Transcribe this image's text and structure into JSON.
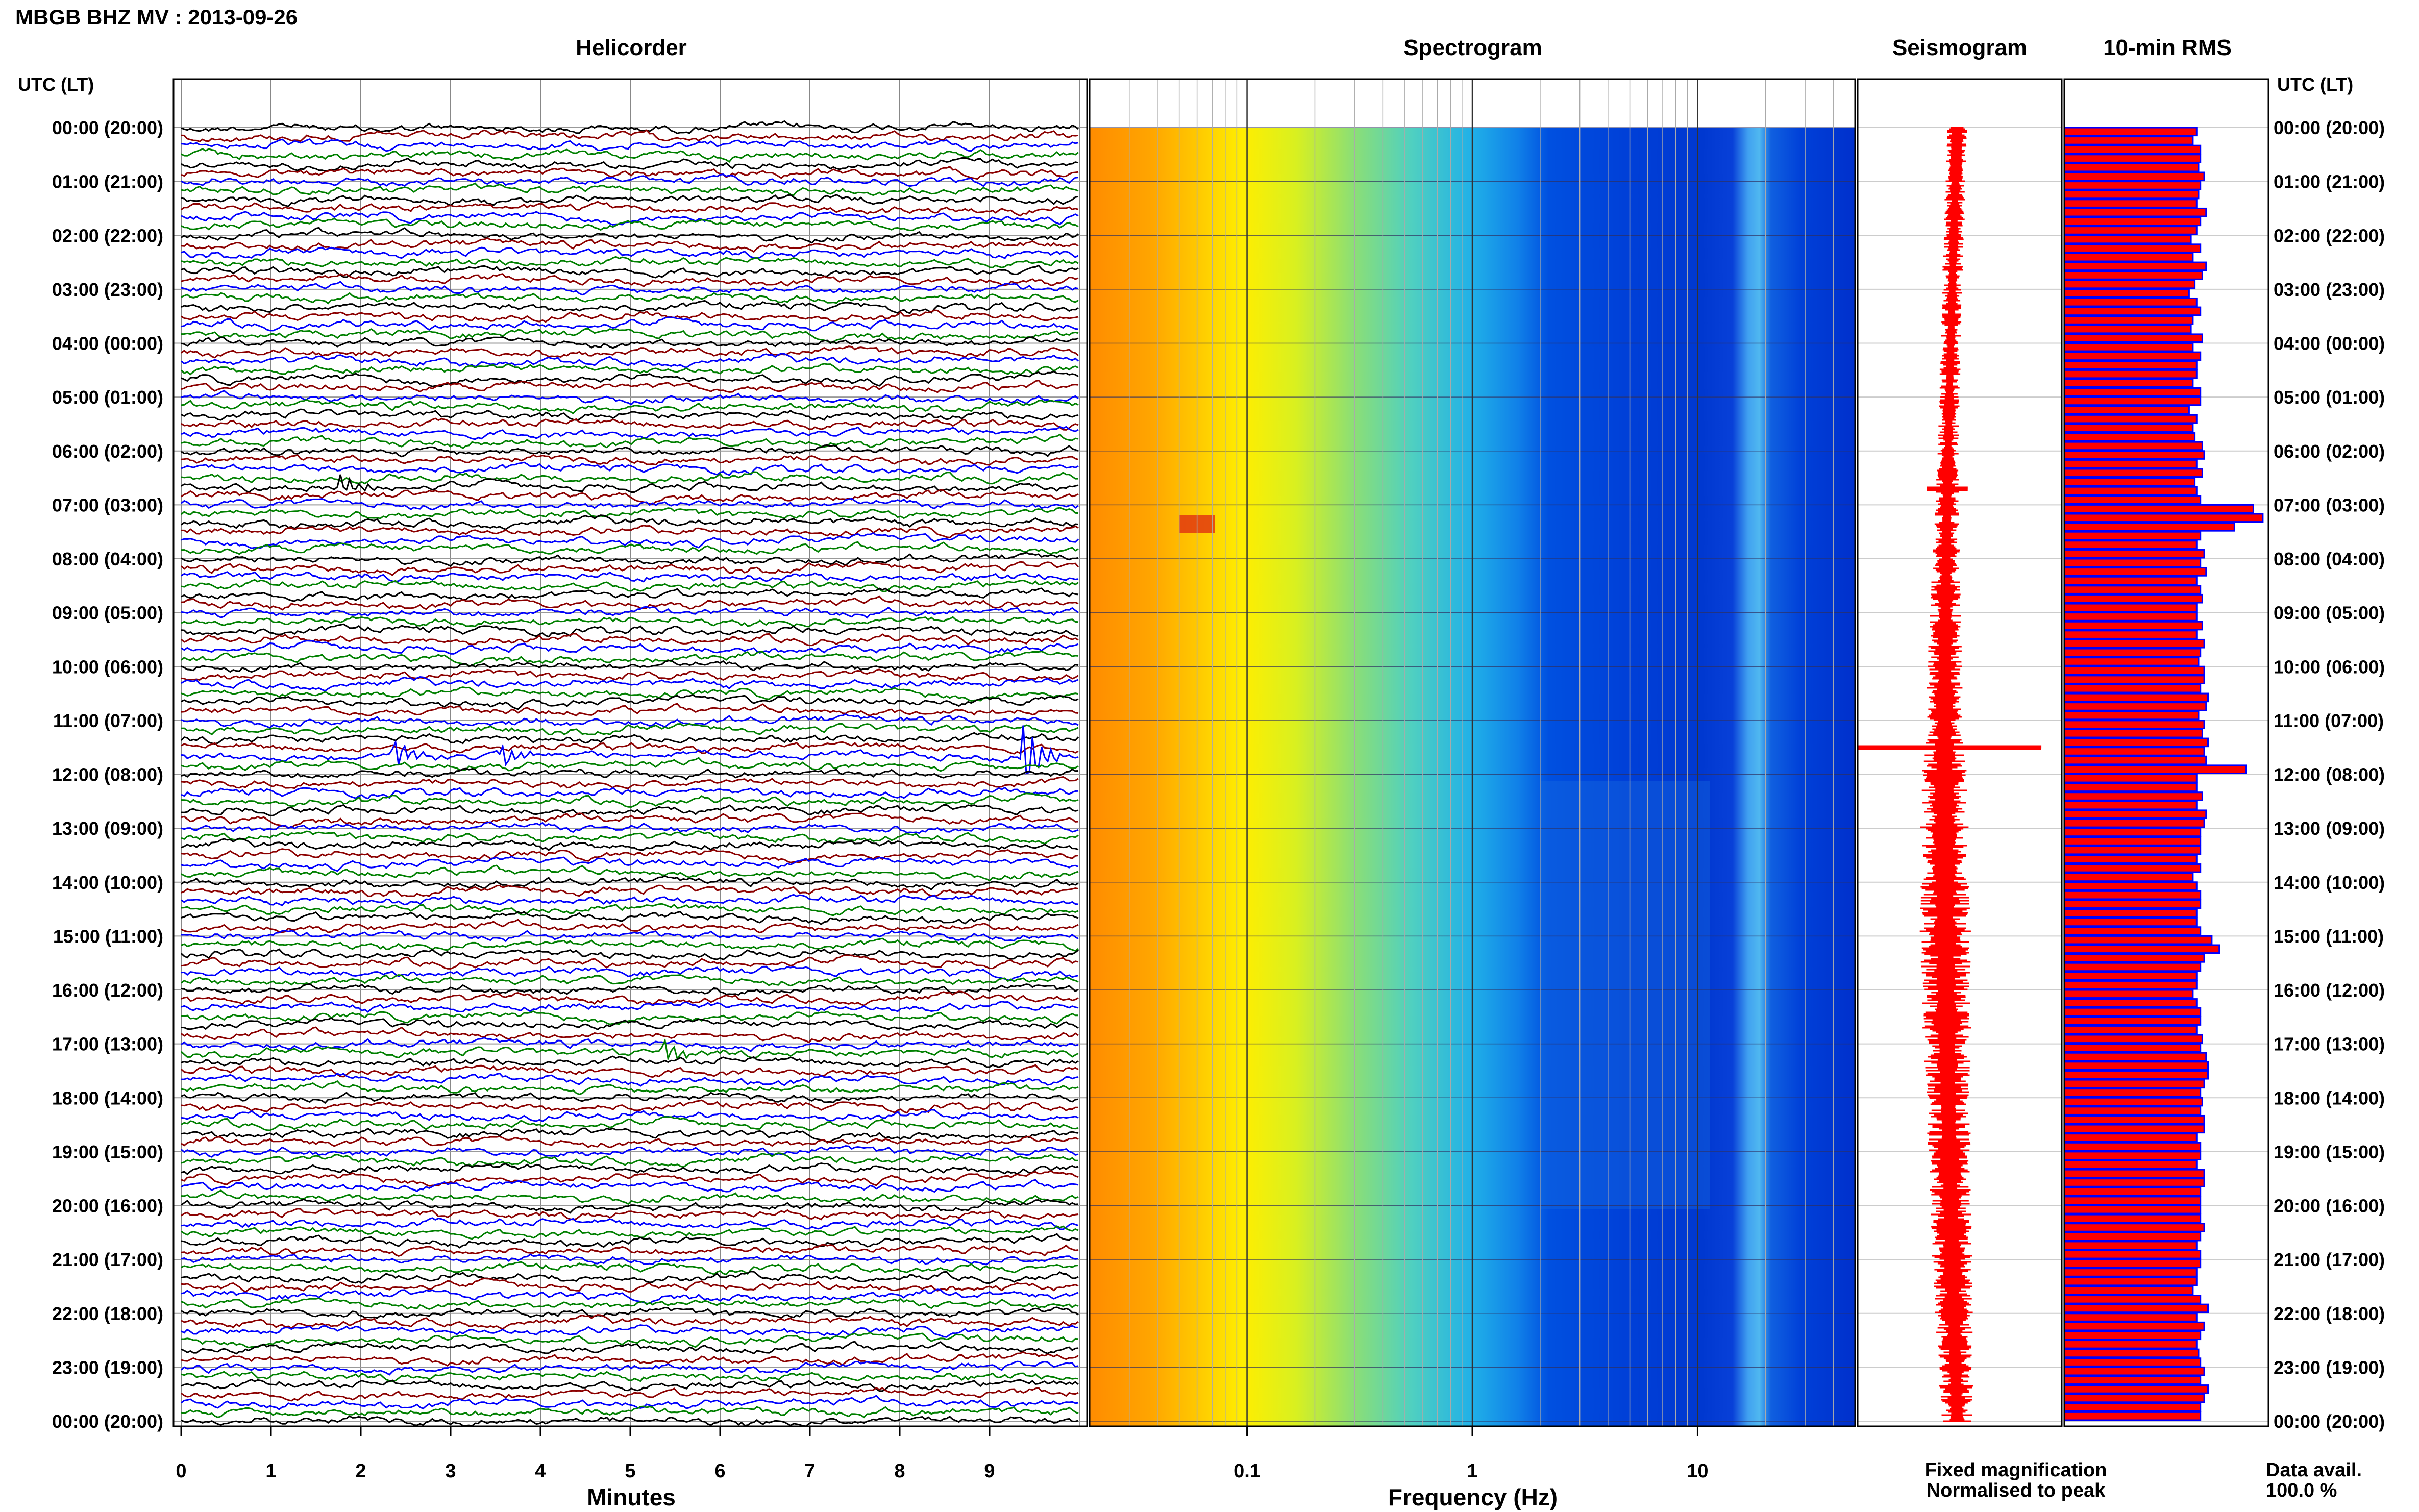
{
  "figure": {
    "title": "MBGB BHZ MV : 2013-09-26",
    "panel_titles": {
      "helicorder": "Helicorder",
      "spectrogram": "Spectrogram",
      "seismogram": "Seismogram",
      "rms": "10-min RMS"
    },
    "left_axis_title": "UTC (LT)",
    "right_axis_title": "UTC (LT)",
    "legend": {
      "fixed": "Fixed magnification",
      "normalised": "Normalised to peak",
      "fixed_color": "#0000ff",
      "normalised_color": "#ff0000"
    },
    "data_avail": {
      "label": "Data avail.",
      "value": "100.0 %"
    }
  },
  "chart_data": {
    "type": "line",
    "time_labels": [
      "00:00 (20:00)",
      "01:00 (21:00)",
      "02:00 (22:00)",
      "03:00 (23:00)",
      "04:00 (00:00)",
      "05:00 (01:00)",
      "06:00 (02:00)",
      "07:00 (03:00)",
      "08:00 (04:00)",
      "09:00 (05:00)",
      "10:00 (06:00)",
      "11:00 (07:00)",
      "12:00 (08:00)",
      "13:00 (09:00)",
      "14:00 (10:00)",
      "15:00 (11:00)",
      "16:00 (12:00)",
      "17:00 (13:00)",
      "18:00 (14:00)",
      "19:00 (15:00)",
      "20:00 (16:00)",
      "21:00 (17:00)",
      "22:00 (18:00)",
      "23:00 (19:00)",
      "00:00 (20:00)"
    ],
    "helicorder": {
      "xlabel": "Minutes",
      "xticks": [
        "0",
        "1",
        "2",
        "3",
        "4",
        "5",
        "6",
        "7",
        "8",
        "9"
      ],
      "xlim": [
        0,
        10
      ],
      "trace_colors": [
        "#000000",
        "#8b0000",
        "#0000ff",
        "#008000"
      ],
      "rows": 144,
      "events": [
        {
          "row": 40,
          "minute": 1.8,
          "amp": 1.2
        },
        {
          "row": 70,
          "minute": 2.4,
          "amp": 1.6
        },
        {
          "row": 70,
          "minute": 3.6,
          "amp": 1.2
        },
        {
          "row": 70,
          "minute": 9.4,
          "amp": 3.5
        },
        {
          "row": 103,
          "minute": 5.4,
          "amp": 1.2
        }
      ]
    },
    "spectrogram": {
      "xlabel": "Frequency (Hz)",
      "scale": "log",
      "xlim": [
        0.02,
        50
      ],
      "xticks": [
        "0.1",
        "1",
        "10"
      ]
    },
    "seismogram": {
      "color": "#ff0000",
      "hourly_envelope": [
        6,
        6,
        6,
        6,
        6,
        6,
        6,
        7,
        8,
        9,
        10,
        11,
        13,
        14,
        14,
        15,
        14,
        14,
        13,
        13,
        12,
        12,
        11,
        10,
        10
      ],
      "spikes": [
        {
          "hour": 11.5,
          "amp": 95
        },
        {
          "hour": 6.7,
          "amp": 20
        }
      ]
    },
    "rms": {
      "bar_color": "#ff0000",
      "edge_color": "#0000ff",
      "values": [
        0.7,
        0.68,
        0.72,
        0.72,
        0.71,
        0.74,
        0.72,
        0.71,
        0.7,
        0.75,
        0.72,
        0.7,
        0.67,
        0.72,
        0.68,
        0.75,
        0.73,
        0.69,
        0.66,
        0.7,
        0.72,
        0.68,
        0.67,
        0.73,
        0.68,
        0.72,
        0.7,
        0.7,
        0.68,
        0.72,
        0.72,
        0.66,
        0.7,
        0.68,
        0.69,
        0.73,
        0.74,
        0.7,
        0.73,
        0.69,
        0.7,
        0.72,
        1.0,
        1.05,
        0.9,
        0.72,
        0.7,
        0.74,
        0.72,
        0.75,
        0.7,
        0.72,
        0.73,
        0.7,
        0.7,
        0.73,
        0.7,
        0.74,
        0.72,
        0.71,
        0.74,
        0.74,
        0.72,
        0.76,
        0.75,
        0.71,
        0.74,
        0.73,
        0.76,
        0.74,
        0.75,
        0.96,
        0.7,
        0.7,
        0.73,
        0.7,
        0.75,
        0.74,
        0.72,
        0.72,
        0.72,
        0.7,
        0.72,
        0.68,
        0.7,
        0.72,
        0.72,
        0.7,
        0.7,
        0.72,
        0.78,
        0.82,
        0.74,
        0.72,
        0.7,
        0.7,
        0.68,
        0.7,
        0.72,
        0.72,
        0.7,
        0.73,
        0.72,
        0.75,
        0.76,
        0.76,
        0.74,
        0.72,
        0.73,
        0.72,
        0.74,
        0.74,
        0.7,
        0.72,
        0.72,
        0.7,
        0.74,
        0.74,
        0.72,
        0.72,
        0.72,
        0.72,
        0.74,
        0.72,
        0.7,
        0.72,
        0.72,
        0.7,
        0.7,
        0.68,
        0.72,
        0.76,
        0.7,
        0.74,
        0.72,
        0.7,
        0.71,
        0.72,
        0.74,
        0.72,
        0.76,
        0.74,
        0.72,
        0.72
      ]
    }
  }
}
